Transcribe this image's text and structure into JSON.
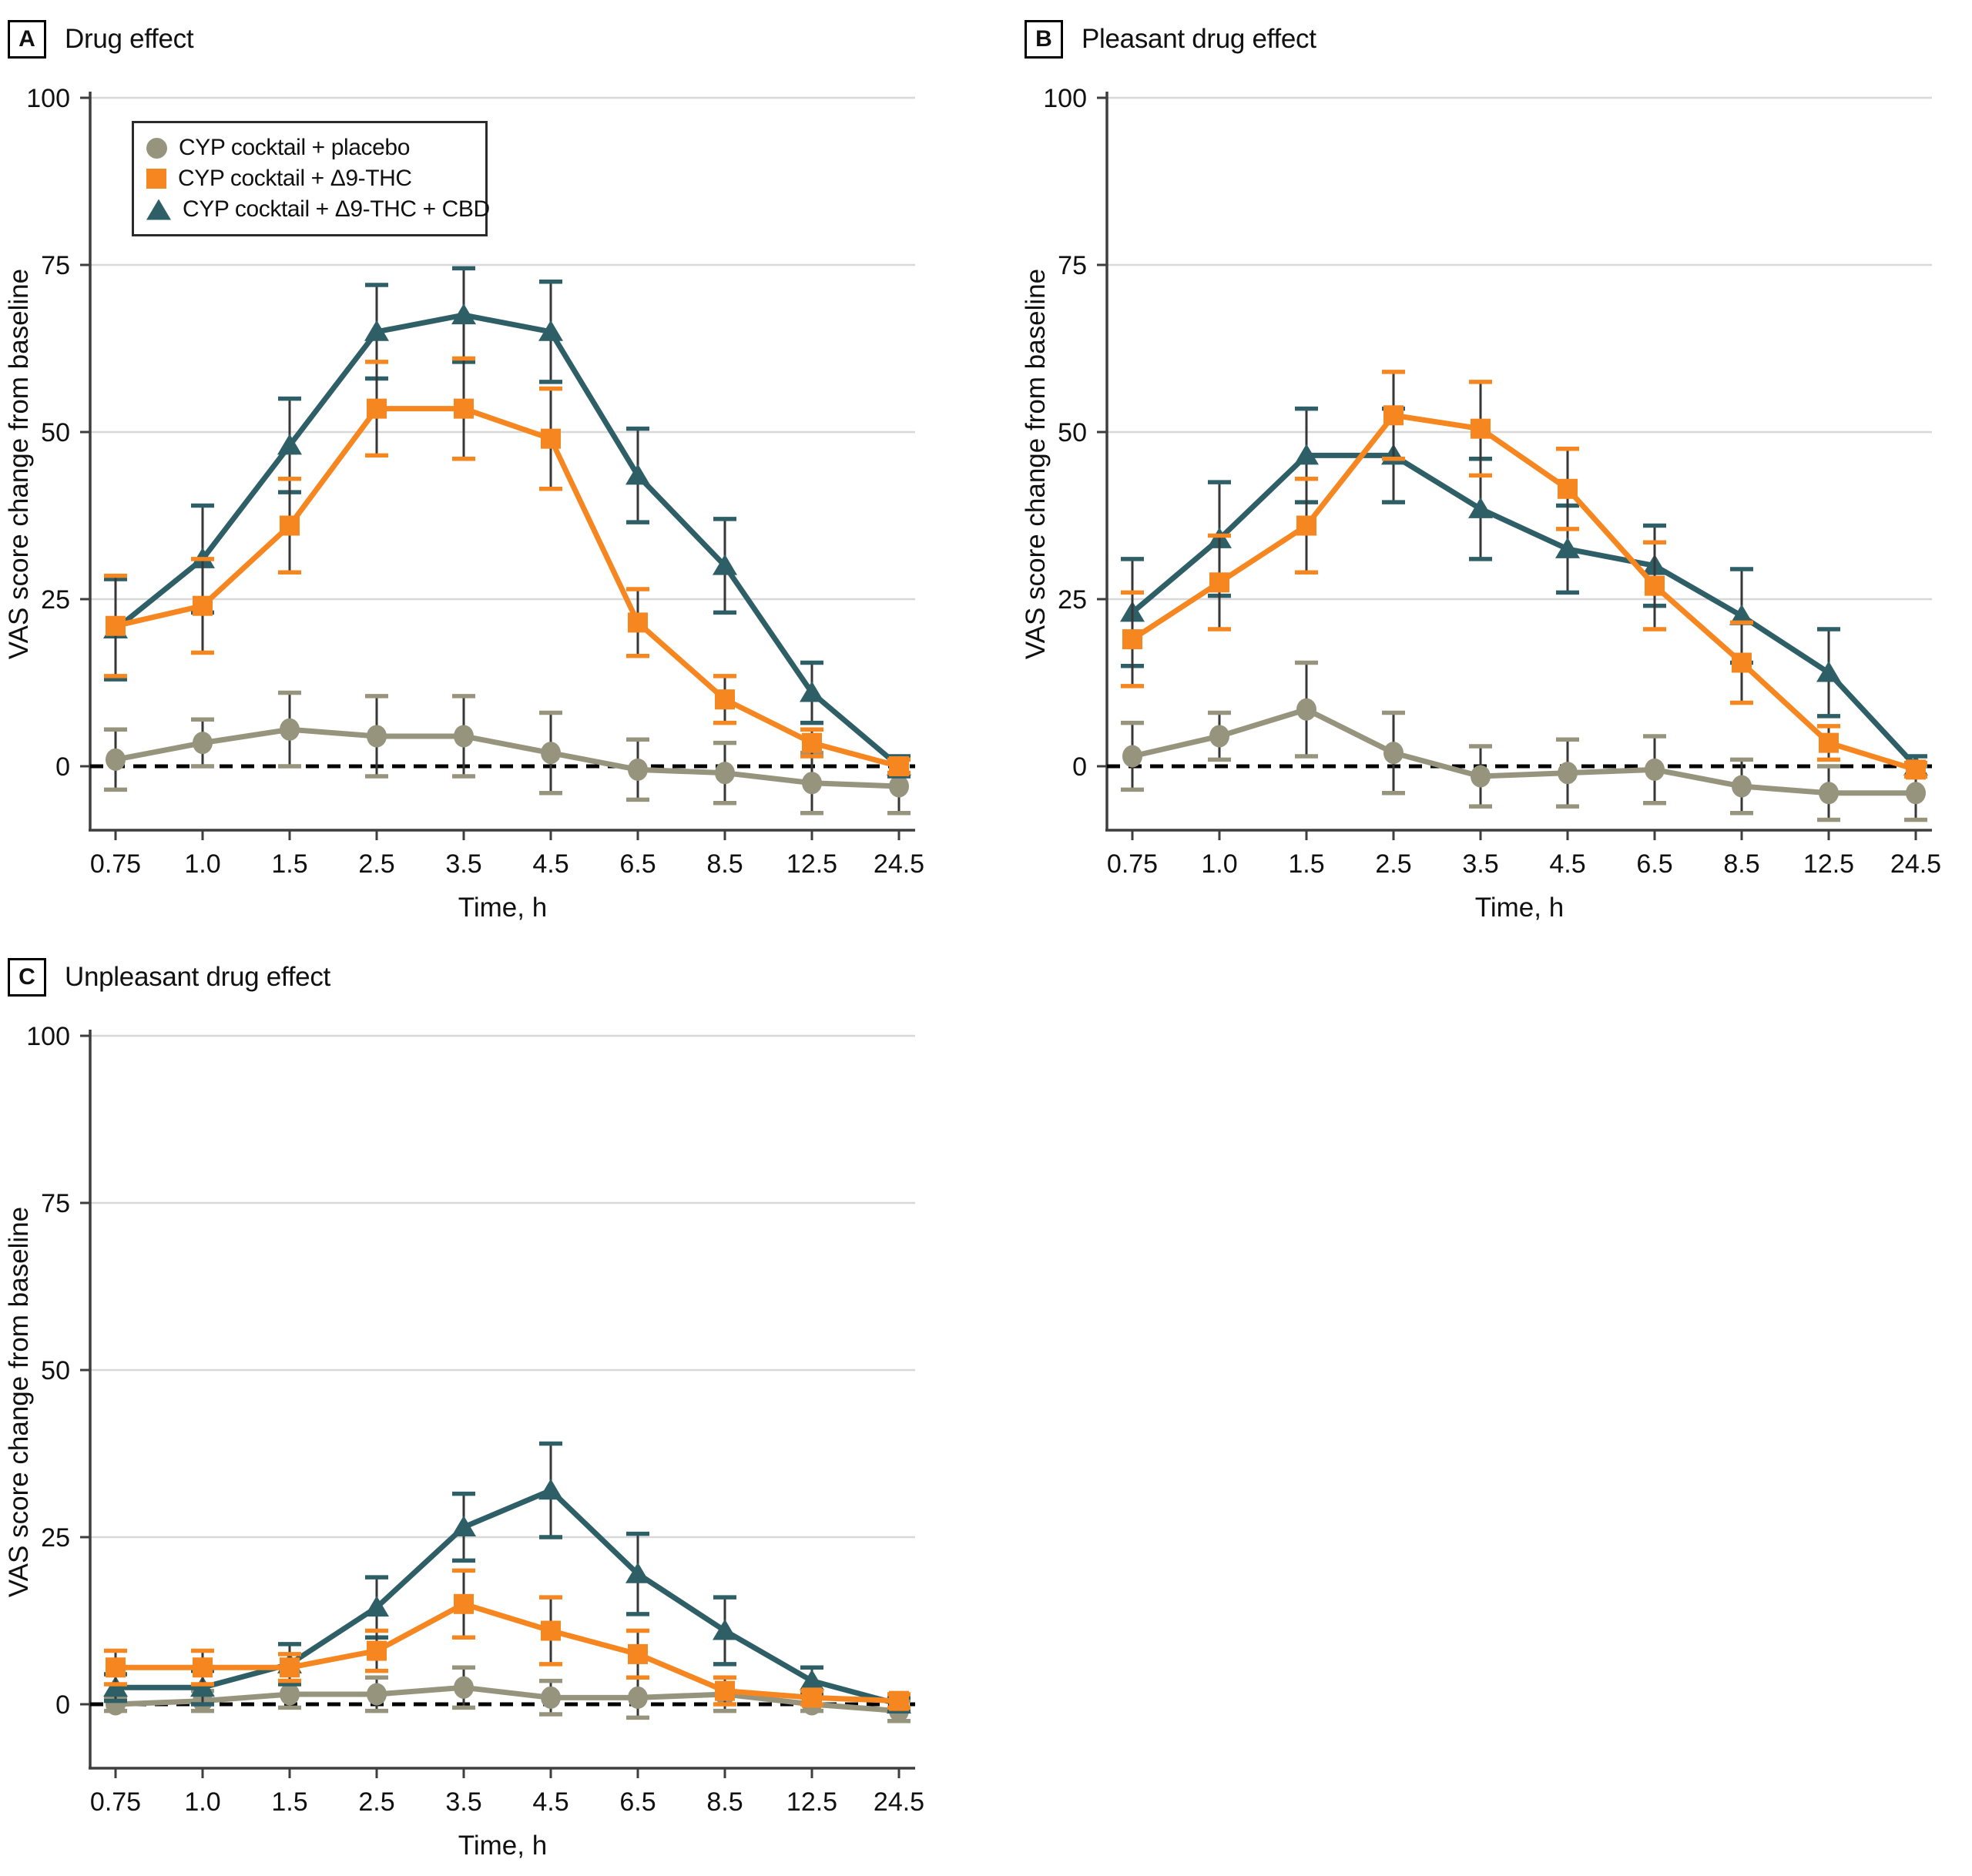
{
  "figure": {
    "background": "#ffffff",
    "panels": [
      {
        "letter": "A",
        "title": "Drug effect"
      },
      {
        "letter": "B",
        "title": "Pleasant drug effect"
      },
      {
        "letter": "C",
        "title": "Unpleasant drug effect"
      }
    ],
    "legend": {
      "items": [
        {
          "label": "CYP cocktail + placebo",
          "marker": "circle",
          "color": "#97947E"
        },
        {
          "label": "CYP cocktail + Δ9-THC",
          "marker": "square",
          "color": "#F6861F"
        },
        {
          "label": "CYP cocktail + Δ9-THC + CBD",
          "marker": "triangle",
          "color": "#2F5F66"
        }
      ]
    },
    "colors": {
      "placebo": "#97947E",
      "thc": "#F6861F",
      "thc_cbd": "#2F5F66",
      "gridline": "#D8D8D8",
      "axis": "#3E3E3E",
      "error_stem": "#373737",
      "zero_line": "#000000",
      "text": "#111111"
    }
  },
  "chart_data": [
    {
      "type": "line",
      "panel": "A",
      "title": "Drug effect",
      "xlabel": "Time, h",
      "ylabel": "VAS score change from baseline",
      "categories": [
        "0.75",
        "1.0",
        "1.5",
        "2.5",
        "3.5",
        "4.5",
        "6.5",
        "8.5",
        "12.5",
        "24.5"
      ],
      "ylim": [
        -10,
        100
      ],
      "yticks": [
        0,
        25,
        50,
        75,
        100
      ],
      "grid": "horizontal",
      "zero_line_dashed": true,
      "legend_position": "top-left",
      "series": [
        {
          "name": "CYP cocktail + placebo",
          "marker": "circle",
          "color": "#97947E",
          "values": [
            1,
            3.5,
            5.5,
            4.5,
            4.5,
            2,
            -0.5,
            -1,
            -2.5,
            -3
          ],
          "err": [
            4.5,
            3.5,
            5.5,
            6,
            6,
            6,
            4.5,
            4.5,
            4.5,
            4
          ]
        },
        {
          "name": "CYP cocktail + Δ9-THC",
          "marker": "square",
          "color": "#F6861F",
          "values": [
            21,
            24,
            36,
            53.5,
            53.5,
            49,
            21.5,
            10,
            3.5,
            0
          ],
          "err": [
            7.5,
            7,
            7,
            7,
            7.5,
            7.5,
            5,
            3.5,
            2,
            1
          ]
        },
        {
          "name": "CYP cocktail + Δ9-THC + CBD",
          "marker": "triangle",
          "color": "#2F5F66",
          "values": [
            20.5,
            31,
            48,
            65,
            67.5,
            65,
            43.5,
            30,
            11,
            0
          ],
          "err": [
            7.5,
            8,
            7,
            7,
            7,
            7.5,
            7,
            7,
            4.5,
            1.5
          ]
        }
      ]
    },
    {
      "type": "line",
      "panel": "B",
      "title": "Pleasant drug effect",
      "xlabel": "Time, h",
      "ylabel": "VAS score change from baseline",
      "categories": [
        "0.75",
        "1.0",
        "1.5",
        "2.5",
        "3.5",
        "4.5",
        "6.5",
        "8.5",
        "12.5",
        "24.5"
      ],
      "ylim": [
        -10,
        100
      ],
      "yticks": [
        0,
        25,
        50,
        75,
        100
      ],
      "grid": "horizontal",
      "zero_line_dashed": true,
      "legend_position": "none",
      "series": [
        {
          "name": "CYP cocktail + placebo",
          "marker": "circle",
          "color": "#97947E",
          "values": [
            1.5,
            4.5,
            8.5,
            2,
            -1.5,
            -1,
            -0.5,
            -3,
            -4,
            -4
          ],
          "err": [
            5,
            3.5,
            7,
            6,
            4.5,
            5,
            5,
            4,
            4,
            4
          ]
        },
        {
          "name": "CYP cocktail + Δ9-THC",
          "marker": "square",
          "color": "#F6861F",
          "values": [
            19,
            27.5,
            36,
            52.5,
            50.5,
            41.5,
            27,
            15.5,
            3.5,
            -0.5
          ],
          "err": [
            7,
            7,
            7,
            6.5,
            7,
            6,
            6.5,
            6,
            2.5,
            1
          ]
        },
        {
          "name": "CYP cocktail + Δ9-THC + CBD",
          "marker": "triangle",
          "color": "#2F5F66",
          "values": [
            23,
            34,
            46.5,
            46.5,
            38.5,
            32.5,
            30,
            22.5,
            14,
            0
          ],
          "err": [
            8,
            8.5,
            7,
            7,
            7.5,
            6.5,
            6,
            7,
            6.5,
            1.5
          ]
        }
      ]
    },
    {
      "type": "line",
      "panel": "C",
      "title": "Unpleasant drug effect",
      "xlabel": "Time, h",
      "ylabel": "VAS score change from baseline",
      "categories": [
        "0.75",
        "1.0",
        "1.5",
        "2.5",
        "3.5",
        "4.5",
        "6.5",
        "8.5",
        "12.5",
        "24.5"
      ],
      "ylim": [
        -10,
        100
      ],
      "yticks": [
        0,
        25,
        50,
        75,
        100
      ],
      "grid": "horizontal",
      "zero_line_dashed": true,
      "legend_position": "none",
      "series": [
        {
          "name": "CYP cocktail + placebo",
          "marker": "circle",
          "color": "#97947E",
          "values": [
            0,
            0.5,
            1.5,
            1.5,
            2.5,
            1,
            1,
            1.5,
            0,
            -1
          ],
          "err": [
            1,
            1.5,
            2,
            2.5,
            3,
            2.5,
            3,
            2.5,
            1,
            1.5
          ]
        },
        {
          "name": "CYP cocktail + Δ9-THC",
          "marker": "square",
          "color": "#F6861F",
          "values": [
            5.5,
            5.5,
            5.5,
            8,
            15,
            11,
            7.5,
            2,
            1,
            0.5
          ],
          "err": [
            2.5,
            2.5,
            2,
            3,
            5,
            5,
            3.5,
            2,
            1,
            1
          ]
        },
        {
          "name": "CYP cocktail + Δ9-THC + CBD",
          "marker": "triangle",
          "color": "#2F5F66",
          "values": [
            2.5,
            2.5,
            6,
            14.5,
            26.5,
            32,
            19.5,
            11,
            3.5,
            0
          ],
          "err": [
            2,
            2.5,
            3,
            4.5,
            5,
            7,
            6,
            5,
            2,
            1
          ]
        }
      ]
    }
  ]
}
